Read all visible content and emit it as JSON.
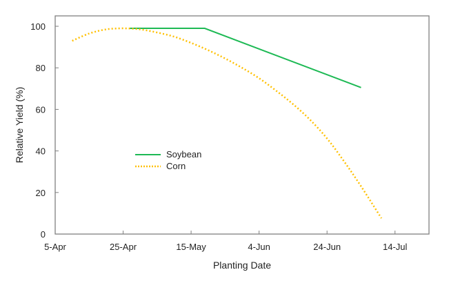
{
  "chart_data": {
    "type": "line",
    "title": "",
    "xlabel": "Planting Date",
    "ylabel": "Relative  Yield (%)",
    "x_unit": "days after 5-Apr",
    "xlim": [
      0,
      110
    ],
    "ylim": [
      0,
      105
    ],
    "x_ticks": [
      {
        "value": 0,
        "label": "5-Apr"
      },
      {
        "value": 20,
        "label": "25-Apr"
      },
      {
        "value": 40,
        "label": "15-May"
      },
      {
        "value": 60,
        "label": "4-Jun"
      },
      {
        "value": 80,
        "label": "24-Jun"
      },
      {
        "value": 100,
        "label": "14-Jul"
      }
    ],
    "y_ticks": [
      {
        "value": 0,
        "label": "0"
      },
      {
        "value": 20,
        "label": "20"
      },
      {
        "value": 40,
        "label": "40"
      },
      {
        "value": 60,
        "label": "60"
      },
      {
        "value": 80,
        "label": "80"
      },
      {
        "value": 100,
        "label": "100"
      }
    ],
    "grid": false,
    "legend_position": "center-left",
    "series": [
      {
        "name": "Soybean",
        "color": "#1db954",
        "style": "solid",
        "points": [
          [
            22,
            99
          ],
          [
            44,
            99
          ],
          [
            90,
            70.5
          ]
        ]
      },
      {
        "name": "Corn",
        "color": "#ffc000",
        "style": "dotted",
        "points": [
          [
            5,
            93
          ],
          [
            10,
            96.5
          ],
          [
            15,
            98.5
          ],
          [
            20,
            99
          ],
          [
            25,
            98.5
          ],
          [
            30,
            97
          ],
          [
            35,
            95
          ],
          [
            40,
            92
          ],
          [
            45,
            88.5
          ],
          [
            50,
            84.5
          ],
          [
            55,
            80
          ],
          [
            60,
            75
          ],
          [
            65,
            69
          ],
          [
            70,
            62.5
          ],
          [
            75,
            55
          ],
          [
            80,
            46
          ],
          [
            85,
            35
          ],
          [
            90,
            23
          ],
          [
            96,
            7.6
          ]
        ]
      }
    ]
  }
}
